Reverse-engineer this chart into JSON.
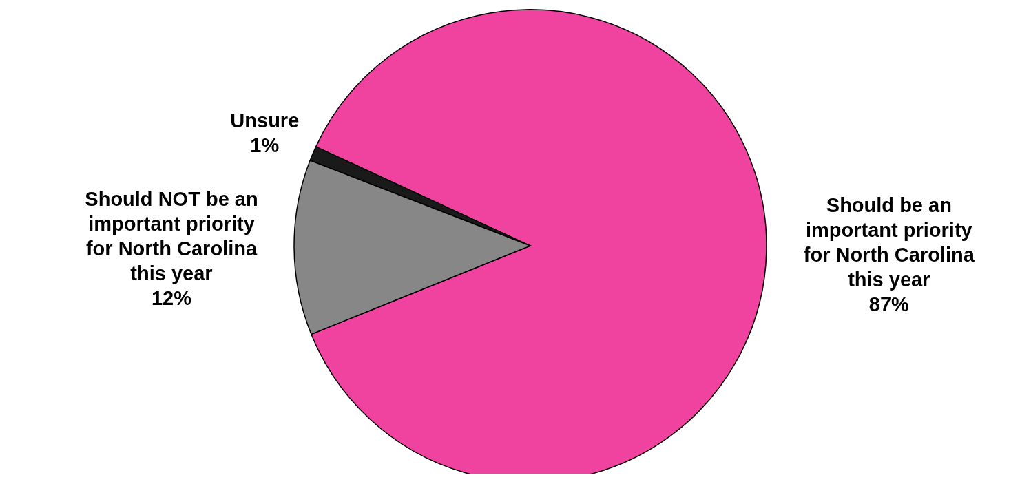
{
  "chart_data": {
    "type": "pie",
    "categories": [
      "Should be an important priority for North Carolina this year",
      "Unsure",
      "Should NOT be an important priority for North Carolina this year"
    ],
    "values": [
      87,
      1,
      12
    ],
    "colors": [
      "#f0439f",
      "#1a1a1a",
      "#878787"
    ],
    "value_labels": [
      "87%",
      "1%",
      "12%"
    ],
    "legend": false
  }
}
